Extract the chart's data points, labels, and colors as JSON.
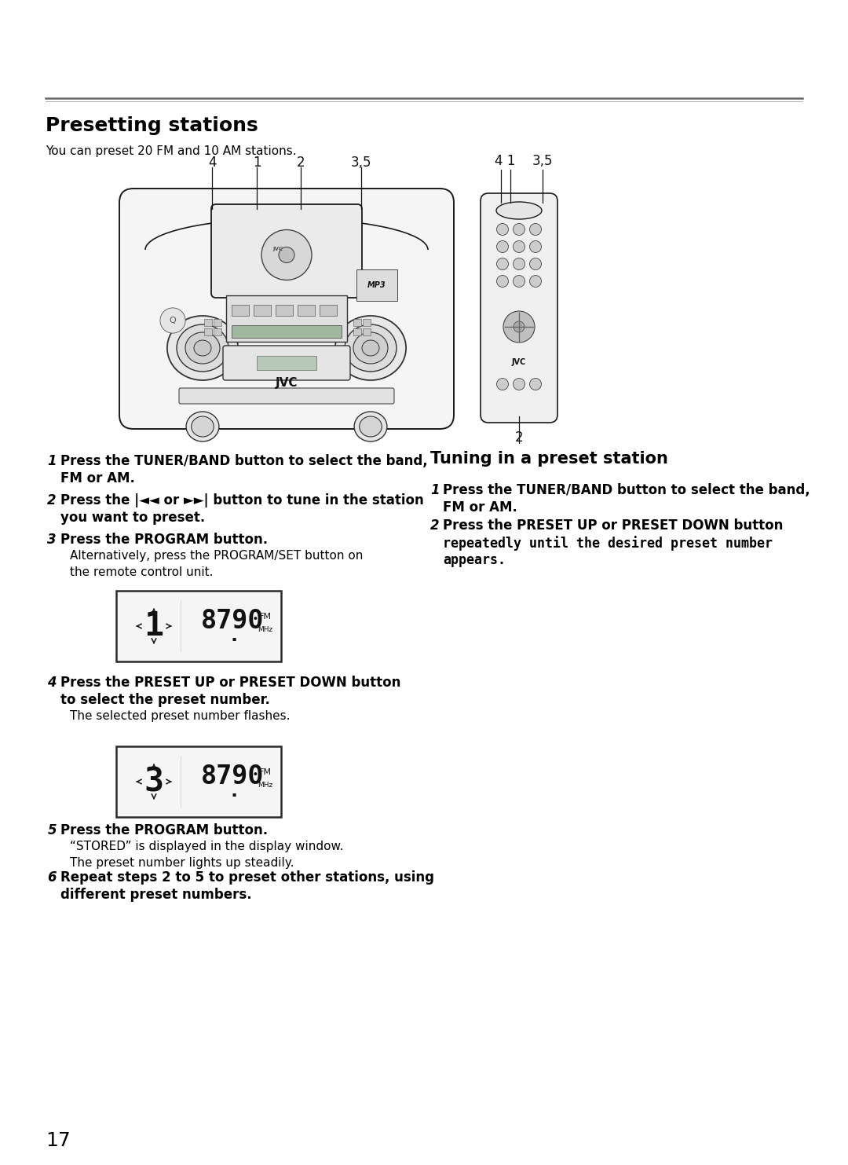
{
  "bg_color": "#ffffff",
  "page_number": "17",
  "section_title": "Presetting stations",
  "section_subtitle": "You can preset 20 FM and 10 AM stations.",
  "right_section_title": "Tuning in a preset station",
  "left_steps": [
    {
      "num": "1",
      "bold_lines": [
        "Press the TUNER/BAND button to select the band,",
        "FM or AM."
      ],
      "normal_lines": []
    },
    {
      "num": "2",
      "bold_lines": [
        "Press the |◄◄ or ►►| button to tune in the station",
        "you want to preset."
      ],
      "normal_lines": []
    },
    {
      "num": "3",
      "bold_lines": [
        "Press the PROGRAM button."
      ],
      "normal_lines": [
        "Alternatively, press the PROGRAM/SET button on",
        "the remote control unit."
      ]
    },
    {
      "num": "4",
      "bold_lines": [
        "Press the PRESET UP or PRESET DOWN button",
        "to select the preset number."
      ],
      "normal_lines": [
        "The selected preset number flashes."
      ]
    },
    {
      "num": "5",
      "bold_lines": [
        "Press the PROGRAM button."
      ],
      "normal_lines": [
        "“STORED” is displayed in the display window.",
        "The preset number lights up steadily."
      ]
    },
    {
      "num": "6",
      "bold_lines": [
        "Repeat steps 2 to 5 to preset other stations, using",
        "different preset numbers."
      ],
      "normal_lines": []
    }
  ],
  "right_steps": [
    {
      "num": "1",
      "bold_lines": [
        "Press the TUNER/BAND button to select the band,",
        "FM or AM."
      ],
      "normal_lines": []
    },
    {
      "num": "2",
      "bold_lines": [
        "Press the PRESET UP or PRESET DOWN button"
      ],
      "mono_lines": [
        "repeatedly until the desired preset number",
        "appears."
      ],
      "normal_lines": []
    }
  ],
  "display1_preset": "1",
  "display2_preset": "3"
}
